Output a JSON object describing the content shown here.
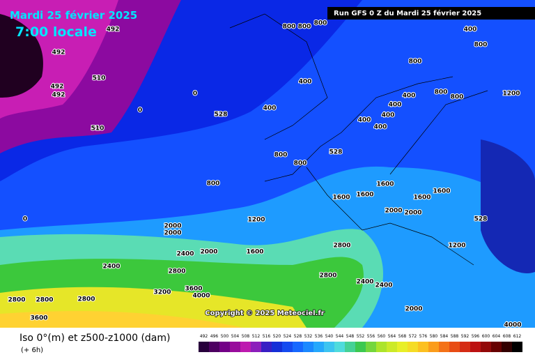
{
  "header": {
    "date": "Mardi 25 février 2025",
    "time": "7:00 locale",
    "run": "Run GFS 0 Z du Mardi 25 février 2025"
  },
  "copyright": "Copyright © 2025 Meteociel.fr",
  "footer": {
    "title": "Iso 0°(m) et z500-z1000 (dam)",
    "step": "(+ 6h)"
  },
  "legend": {
    "labels": [
      492,
      496,
      500,
      504,
      508,
      512,
      516,
      520,
      524,
      528,
      532,
      536,
      540,
      544,
      548,
      552,
      556,
      560,
      564,
      568,
      572,
      576,
      580,
      584,
      588,
      592,
      596,
      600,
      604,
      608,
      612
    ]
  },
  "map_labels": [
    "492",
    "492",
    "492",
    "492",
    "510",
    "510",
    "0",
    "0",
    "0",
    "528",
    "528",
    "528",
    "800",
    "800",
    "800",
    "800",
    "800",
    "800",
    "800",
    "800",
    "800",
    "800",
    "400",
    "400",
    "400",
    "400",
    "400",
    "400",
    "400",
    "400",
    "1200",
    "1200",
    "1200",
    "1600",
    "1600",
    "1600",
    "1600",
    "1600",
    "1600",
    "2000",
    "2000",
    "2000",
    "2000",
    "2000",
    "2000",
    "2400",
    "2400",
    "2400",
    "2400",
    "2800",
    "2800",
    "2800",
    "2800",
    "2800",
    "2800",
    "3200",
    "3600",
    "3600",
    "4000",
    "4000"
  ]
}
